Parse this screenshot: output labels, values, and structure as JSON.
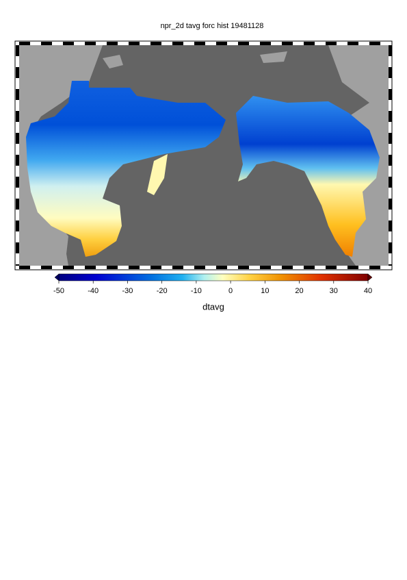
{
  "title": "npr_2d tavg forc hist 19481128",
  "colorbar": {
    "label": "dtavg",
    "lim": [
      -50,
      40
    ],
    "ticks": [
      -50,
      -40,
      -30,
      -20,
      -10,
      0,
      10,
      20,
      30,
      40
    ]
  }
}
